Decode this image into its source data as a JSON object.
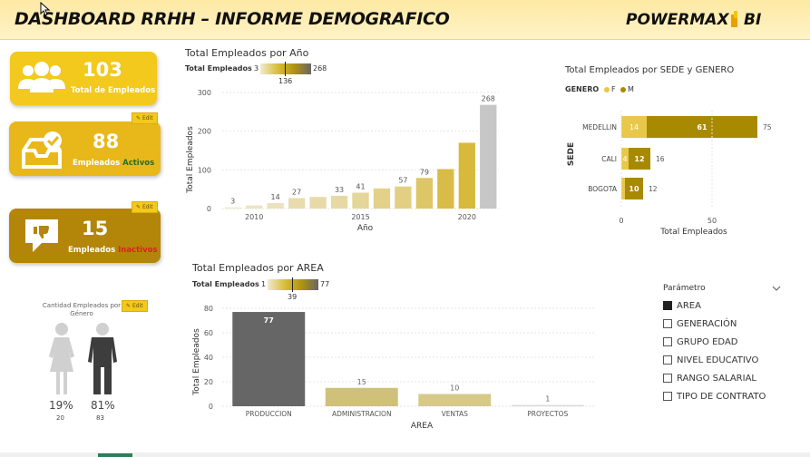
{
  "header": {
    "title": "DASHBOARD RRHH – INFORME DEMOGRAFICO",
    "brand": "POWERMAX",
    "brand_suffix": "BI"
  },
  "colors": {
    "gold": "#f2c91c",
    "dark_gold": "#b3860a",
    "olive": "#a88a00",
    "light_tan": "#cfc07a",
    "grey": "#c6c6c6",
    "dark_grey": "#666666"
  },
  "kpis": {
    "total": {
      "value": "103",
      "label": "Total de Empleados",
      "icon": "people-group-icon"
    },
    "activos": {
      "value": "88",
      "label_prefix": "Empleados ",
      "label_highlight": "Activos",
      "icon": "inbox-check-icon",
      "edit": "Edit"
    },
    "inactivos": {
      "value": "15",
      "label_prefix": "Empleados ",
      "label_highlight": "Inactivos",
      "icon": "thumbs-down-icon",
      "edit": "Edit"
    }
  },
  "gender": {
    "title": "Cantidad Empleados por Género",
    "edit": "Edit",
    "female_pct": "19%",
    "female_count": "20",
    "male_pct": "81%",
    "male_count": "83",
    "female_fill": 0.19,
    "male_fill": 0.81
  },
  "year_chart": {
    "legend_label": "Total Empleados",
    "legend_min": "3",
    "legend_max": "268",
    "legend_mid": "136"
  },
  "sede_chart": {
    "legend_label": "GENERO",
    "legend_f": "F",
    "legend_m": "M"
  },
  "area_chart": {
    "legend_label": "Total Empleados",
    "legend_min": "1",
    "legend_max": "77",
    "legend_mid": "39"
  },
  "parameter": {
    "title": "Parámetro",
    "options": [
      {
        "label": "AREA",
        "checked": true
      },
      {
        "label": "GENERACIÓN",
        "checked": false
      },
      {
        "label": "GRUPO EDAD",
        "checked": false
      },
      {
        "label": "NIVEL EDUCATIVO",
        "checked": false
      },
      {
        "label": "RANGO SALARIAL",
        "checked": false
      },
      {
        "label": "TIPO DE CONTRATO",
        "checked": false
      }
    ]
  },
  "chart_data": [
    {
      "type": "bar",
      "title": "Total Empleados por Año",
      "xlabel": "Año",
      "ylabel": "Total Empleados",
      "x": [
        2009,
        2010,
        2011,
        2012,
        2013,
        2014,
        2015,
        2016,
        2017,
        2018,
        2019,
        2020,
        2021
      ],
      "values": [
        3,
        8,
        14,
        27,
        30,
        33,
        41,
        52,
        57,
        79,
        102,
        170,
        268
      ],
      "data_labels": [
        "3",
        "",
        "14",
        "27",
        "",
        "33",
        "41",
        "",
        "57",
        "79",
        "",
        "",
        "268"
      ],
      "xticks": [
        "2010",
        "2015",
        "2020"
      ],
      "yticks": [
        "0",
        "100",
        "200",
        "300"
      ],
      "ylim": [
        0,
        300
      ]
    },
    {
      "type": "bar",
      "title": "Total Empleados por SEDE y GENERO",
      "xlabel": "Total Empleados",
      "ylabel": "SEDE",
      "categories": [
        "MEDELLIN",
        "CALI",
        "BOGOTA"
      ],
      "series": [
        {
          "name": "F",
          "values": [
            14,
            4,
            2
          ]
        },
        {
          "name": "M",
          "values": [
            61,
            12,
            10
          ]
        }
      ],
      "totals": [
        "75",
        "16",
        "12"
      ],
      "f_labels": [
        "14",
        "4",
        ""
      ],
      "m_labels": [
        "61",
        "12",
        "10"
      ],
      "xticks": [
        "0",
        "50"
      ],
      "xlim": [
        0,
        85
      ]
    },
    {
      "type": "bar",
      "title": "Total Empleados por AREA",
      "xlabel": "AREA",
      "ylabel": "Total Empleados",
      "categories": [
        "PRODUCCION",
        "ADMINISTRACION",
        "VENTAS",
        "PROYECTOS"
      ],
      "values": [
        77,
        15,
        10,
        1
      ],
      "data_labels": [
        "77",
        "15",
        "10",
        "1"
      ],
      "yticks": [
        "0",
        "20",
        "40",
        "60",
        "80"
      ],
      "ylim": [
        0,
        80
      ]
    }
  ]
}
